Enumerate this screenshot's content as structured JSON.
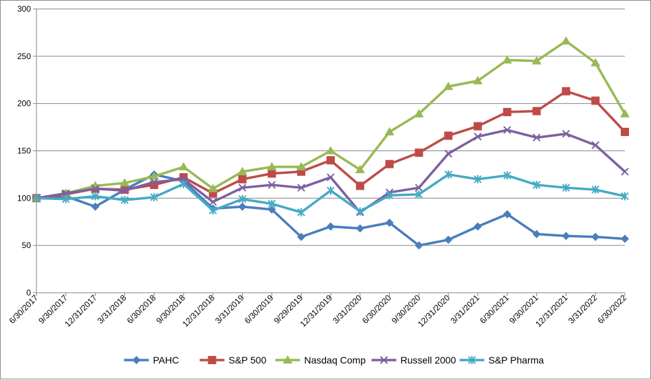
{
  "chart_data": {
    "type": "line",
    "title": "",
    "xlabel": "",
    "ylabel": "",
    "ylim": [
      0,
      300
    ],
    "yticks": [
      0,
      50,
      100,
      150,
      200,
      250,
      300
    ],
    "grid": "horizontal",
    "legend_position": "bottom",
    "categories": [
      "6/30/2017",
      "9/30/2017",
      "12/31/2017",
      "3/31/2018",
      "6/30/2018",
      "9/30/2018",
      "12/31/2018",
      "3/31/2019",
      "6/30/2019",
      "9/29/2019",
      "12/31/2019",
      "3/31/2020",
      "6/30/2020",
      "9/30/2020",
      "12/31/2020",
      "3/31/2021",
      "6/30/2021",
      "9/30/2021",
      "12/31/2021",
      "3/31/2022",
      "6/30/2022"
    ],
    "series": [
      {
        "name": "PAHC",
        "color": "#4a7ebb",
        "marker": "diamond",
        "values": [
          100,
          102,
          91,
          109,
          125,
          118,
          89,
          91,
          88,
          59,
          70,
          68,
          74,
          50,
          56,
          70,
          83,
          62,
          60,
          59,
          57
        ]
      },
      {
        "name": "S&P 500",
        "color": "#be4b48",
        "marker": "square",
        "values": [
          100,
          104,
          110,
          109,
          114,
          122,
          105,
          120,
          126,
          128,
          140,
          113,
          136,
          148,
          166,
          176,
          191,
          192,
          213,
          203,
          170
        ]
      },
      {
        "name": "Nasdaq Comp",
        "color": "#98b954",
        "marker": "triangle",
        "values": [
          100,
          105,
          113,
          116,
          123,
          133,
          110,
          128,
          133,
          133,
          150,
          130,
          170,
          189,
          218,
          224,
          246,
          245,
          266,
          243,
          189
        ]
      },
      {
        "name": "Russell 2000",
        "color": "#7d60a0",
        "marker": "x",
        "values": [
          100,
          105,
          110,
          108,
          117,
          120,
          96,
          111,
          114,
          111,
          122,
          85,
          106,
          111,
          147,
          165,
          172,
          164,
          168,
          156,
          128
        ]
      },
      {
        "name": "S&P Pharma",
        "color": "#46aac5",
        "marker": "asterisk",
        "values": [
          100,
          99,
          102,
          98,
          101,
          115,
          87,
          99,
          94,
          85,
          108,
          86,
          103,
          104,
          125,
          120,
          124,
          114,
          111,
          109,
          102
        ]
      }
    ]
  }
}
